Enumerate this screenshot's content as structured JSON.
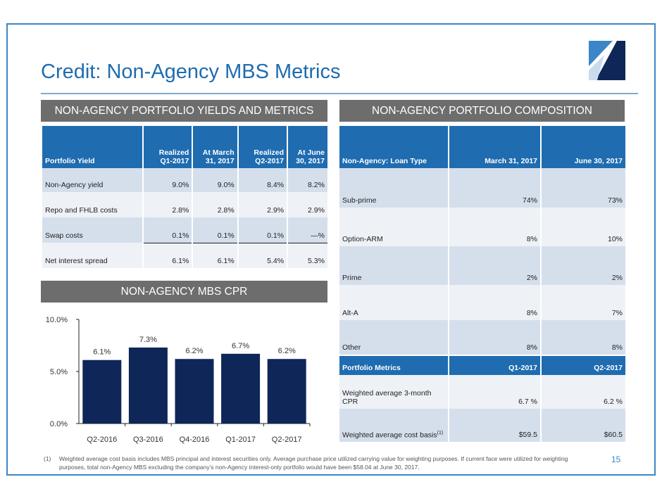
{
  "title": "Credit: Non-Agency MBS Metrics",
  "colors": {
    "accent": "#1f6cb0",
    "header_bar": "#6d6d6d",
    "bar": "#0f2658",
    "row_shade": "#d5dfec"
  },
  "left_header": "NON-AGENCY PORTFOLIO YIELDS AND METRICS",
  "right_header": "NON-AGENCY PORTFOLIO COMPOSITION",
  "cpr_header": "NON-AGENCY MBS CPR",
  "yields_table": {
    "columns": [
      "Portfolio Yield",
      "Realized Q1-2017",
      "At March 31, 2017",
      "Realized Q2-2017",
      "At June 30, 2017"
    ],
    "rows": [
      {
        "label": "Non-Agency yield",
        "values": [
          "9.0",
          "9.0",
          "8.4",
          "8.2"
        ],
        "unit": "%"
      },
      {
        "label": "Repo and FHLB costs",
        "values": [
          "2.8",
          "2.8",
          "2.9",
          "2.9"
        ],
        "unit": "%"
      },
      {
        "label": "Swap costs",
        "values": [
          "0.1",
          "0.1",
          "0.1",
          "—"
        ],
        "unit": "%"
      },
      {
        "label": "Net interest spread",
        "values": [
          "6.1",
          "6.1",
          "5.4",
          "5.3"
        ],
        "unit": "%"
      }
    ]
  },
  "composition_table": {
    "columns": [
      "Non-Agency: Loan Type",
      "March 31, 2017",
      "June 30, 2017"
    ],
    "rows": [
      {
        "label": "Sub-prime",
        "values": [
          "74%",
          "73%"
        ]
      },
      {
        "label": "Option-ARM",
        "values": [
          "8%",
          "10%"
        ]
      },
      {
        "label": "Prime",
        "values": [
          "2%",
          "2%"
        ]
      },
      {
        "label": "Alt-A",
        "values": [
          "8%",
          "7%"
        ]
      },
      {
        "label": "Other",
        "values": [
          "8%",
          "8%"
        ]
      }
    ],
    "metrics_columns": [
      "Portfolio Metrics",
      "Q1-2017",
      "Q2-2017"
    ],
    "metrics_rows": [
      {
        "label": "Weighted average 3-month CPR",
        "values": [
          "6.7 %",
          "6.2 %"
        ]
      },
      {
        "label": "Weighted average cost basis",
        "sup": "(1)",
        "values": [
          "$59.5",
          "$60.5"
        ]
      }
    ]
  },
  "chart_data": {
    "type": "bar",
    "categories": [
      "Q2-2016",
      "Q3-2016",
      "Q4-2016",
      "Q1-2017",
      "Q2-2017"
    ],
    "values": [
      6.1,
      7.3,
      6.2,
      6.7,
      6.2
    ],
    "labels": [
      "6.1%",
      "7.3%",
      "6.2%",
      "6.7%",
      "6.2%"
    ],
    "yticks": [
      "0.0%",
      "5.0%",
      "10.0%"
    ],
    "ylim": [
      0,
      10
    ],
    "grid": false,
    "title": "",
    "xlabel": "",
    "ylabel": ""
  },
  "footnote": {
    "number": "(1)",
    "text": "Weighted average cost basis includes MBS principal and interest securities only. Average purchase price utilized carrying value for weighting purposes. If current face were utilized for weighting purposes, total non-Agency MBS excluding the company’s non-Agency interest-only portfolio would have been $58.04 at June 30, 2017."
  },
  "page_number": "15"
}
